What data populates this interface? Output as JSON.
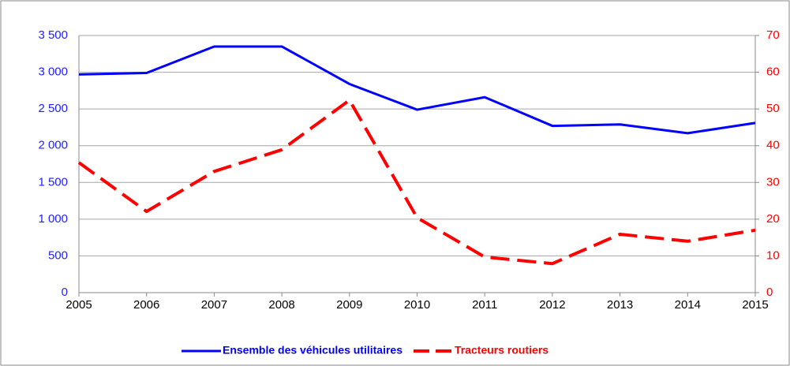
{
  "chart_data": {
    "type": "line",
    "x": [
      2005,
      2006,
      2007,
      2008,
      2009,
      2010,
      2011,
      2012,
      2013,
      2014,
      2015
    ],
    "xlim": [
      2005,
      2015
    ],
    "xticks": [
      2005,
      2006,
      2007,
      2008,
      2009,
      2010,
      2011,
      2012,
      2013,
      2014,
      2015
    ],
    "ylim": [
      0,
      3500
    ],
    "yticks": [
      0,
      500,
      {
        "value": 1000,
        "label": "1 000"
      },
      {
        "value": 1500,
        "label": "1 500"
      },
      {
        "value": 2000,
        "label": "2 000"
      },
      {
        "value": 2500,
        "label": "2 500"
      },
      {
        "value": 3000,
        "label": "3 000"
      },
      {
        "value": 3500,
        "label": "3 500"
      }
    ],
    "y2lim": [
      0,
      70
    ],
    "y2ticks": [
      0,
      10,
      20,
      30,
      40,
      50,
      60,
      70
    ],
    "grid": true,
    "legend": "bottom",
    "series": [
      {
        "name": "Ensemble des véhicules utilitaires",
        "color": "#0000ff",
        "dash": "solid",
        "values": [
          2970,
          2990,
          3350,
          3350,
          2840,
          2490,
          2660,
          2270,
          2290,
          2170,
          2310
        ]
      },
      {
        "name": "Tracteurs routiers",
        "color": "#ff0000",
        "dash": "dashed",
        "axis": "y2",
        "values": [
          35.4,
          22.1,
          33,
          38.9,
          52.4,
          20.4,
          9.7,
          7.9,
          15.9,
          14,
          17
        ]
      }
    ]
  }
}
